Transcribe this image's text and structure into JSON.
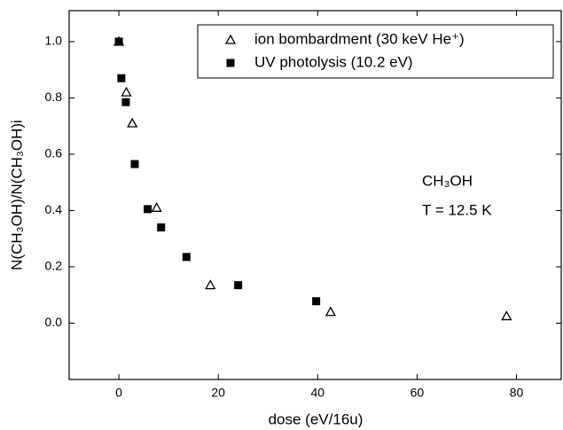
{
  "chart_data": {
    "type": "scatter",
    "xlabel": "dose (eV/16u)",
    "ylabel": "N(CH₃OH)/N(CH₃OH)i",
    "annotations": [
      "CH₃OH",
      "T = 12.5 K"
    ],
    "xlim": [
      -10,
      89
    ],
    "ylim": [
      -0.2,
      1.11
    ],
    "xticks": [
      0,
      20,
      40,
      60,
      80
    ],
    "yticks": [
      {
        "value": 0,
        "label": "0.0"
      },
      {
        "value": 0.2,
        "label": "0.2"
      },
      {
        "value": 0.4,
        "label": "0.4"
      },
      {
        "value": 0.6,
        "label": "0.6"
      },
      {
        "value": 0.8,
        "label": "0.8"
      },
      {
        "value": 1,
        "label": "1.0"
      }
    ],
    "legend": "top-right",
    "series": [
      {
        "name": "ion bombardment (30 keV He⁺)",
        "color": "#000000",
        "marker": "open-triangle",
        "x": [
          0,
          1.5,
          2.7,
          7.6,
          18.4,
          42.6,
          78
        ],
        "values": [
          1.0,
          0.82,
          0.71,
          0.41,
          0.135,
          0.04,
          0.025
        ]
      },
      {
        "name": "UV photolysis (10.2 eV)",
        "color": "#000000",
        "marker": "filled-square",
        "x": [
          0,
          0.5,
          1.4,
          3.2,
          5.8,
          8.5,
          13.6,
          24,
          39.7
        ],
        "values": [
          1.0,
          0.87,
          0.785,
          0.565,
          0.405,
          0.34,
          0.235,
          0.135,
          0.078
        ]
      }
    ]
  }
}
